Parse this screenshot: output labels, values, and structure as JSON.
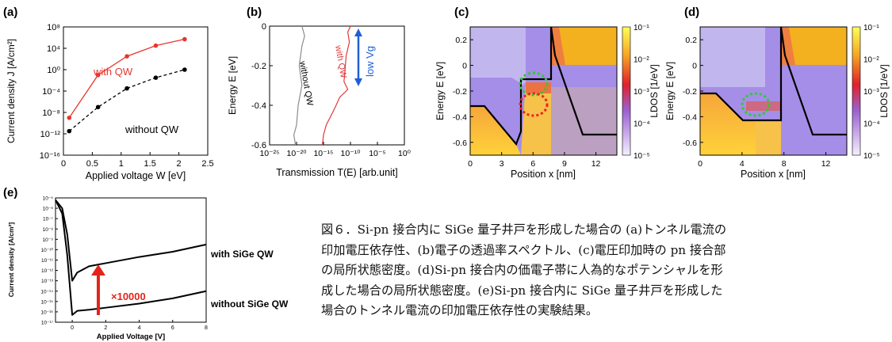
{
  "chart_data": [
    {
      "id": "a",
      "panel_label": "(a)",
      "type": "line",
      "xlabel": "Applied voltage W [eV]",
      "ylabel": "Current density J [A/cm²]",
      "xlim": [
        0,
        2.5
      ],
      "ylim_log10": [
        -16,
        8
      ],
      "x_ticks": [
        "0",
        "0.5",
        "1",
        "1.5",
        "2",
        "2.5"
      ],
      "y_ticks": [
        "10⁻¹⁶",
        "10⁻¹²",
        "10⁻⁸",
        "10⁻⁴",
        "10⁰",
        "10⁴",
        "10⁸"
      ],
      "series": [
        {
          "name": "with QW",
          "color": "#e8352e",
          "x": [
            0.1,
            0.6,
            1.1,
            1.6,
            2.1
          ],
          "log10_y": [
            -9,
            -1,
            2.5,
            4.5,
            5.7
          ]
        },
        {
          "name": "without QW",
          "color": "#000000",
          "x": [
            0.1,
            0.6,
            1.1,
            1.6,
            2.1
          ],
          "log10_y": [
            -11.5,
            -7,
            -3.5,
            -1.5,
            0
          ]
        }
      ]
    },
    {
      "id": "b",
      "panel_label": "(b)",
      "type": "line",
      "xlabel": "Transmission T(E) [arb.unit]",
      "ylabel": "Energy E [eV]",
      "xlim_log10": [
        -25,
        0
      ],
      "ylim": [
        -0.6,
        0
      ],
      "x_ticks": [
        "10⁻²⁵",
        "10⁻²⁰",
        "10⁻¹⁵",
        "10⁻¹⁰",
        "10⁻⁵",
        "10⁰"
      ],
      "y_ticks": [
        "0",
        "-0.2",
        "-0.4",
        "-0.6"
      ],
      "annotation": "low Vg",
      "annotation_color": "#1f5fd6",
      "series": [
        {
          "name": "without QW",
          "color": "#8c8c8c",
          "log10_x": [
            -19,
            -18.5,
            -19,
            -19.5,
            -19,
            -19.7,
            -20,
            -20.5,
            -20.2
          ],
          "y": [
            0,
            -0.05,
            -0.1,
            -0.2,
            -0.3,
            -0.4,
            -0.5,
            -0.55,
            -0.6
          ]
        },
        {
          "name": "with QW",
          "color": "#e03a3a",
          "log10_x": [
            -10,
            -10.5,
            -10.2,
            -10.8,
            -11,
            -11.2,
            -10.5,
            -12,
            -13,
            -14.5,
            -15,
            -15.2
          ],
          "y": [
            0,
            -0.03,
            -0.08,
            -0.15,
            -0.22,
            -0.28,
            -0.32,
            -0.36,
            -0.42,
            -0.5,
            -0.55,
            -0.6
          ]
        }
      ]
    },
    {
      "id": "c",
      "panel_label": "(c)",
      "type": "heatmap",
      "xlabel": "Position x [nm]",
      "ylabel": "Energy E [eV]",
      "xlim": [
        0,
        14
      ],
      "ylim": [
        -0.7,
        0.3
      ],
      "x_ticks": [
        "0",
        "3",
        "6",
        "9",
        "12"
      ],
      "y_ticks": [
        "0.2",
        "0",
        "-0.2",
        "-0.4",
        "-0.6"
      ],
      "colorbar_label": "LDOS [1/eV]",
      "colorbar_ticks": [
        "10⁻¹",
        "10⁻²",
        "10⁻³",
        "10⁻⁴",
        "10⁻⁵"
      ]
    },
    {
      "id": "d",
      "panel_label": "(d)",
      "type": "heatmap",
      "xlabel": "Position x [nm]",
      "ylabel": "Energy E [eV]",
      "xlim": [
        0,
        14
      ],
      "ylim": [
        -0.7,
        0.3
      ],
      "x_ticks": [
        "0",
        "4",
        "8",
        "12"
      ],
      "y_ticks": [
        "0.2",
        "0",
        "-0.2",
        "-0.4",
        "-0.6"
      ],
      "colorbar_label": "LDOS [1/eV]",
      "colorbar_ticks": [
        "10⁻¹",
        "10⁻²",
        "10⁻³",
        "10⁻⁴",
        "10⁻⁵"
      ]
    },
    {
      "id": "e",
      "panel_label": "(e)",
      "type": "line",
      "xlabel": "Applied Voltage [V]",
      "ylabel": "Current density [A/cm²]",
      "xlim": [
        -1,
        8
      ],
      "ylim_log10": [
        -17,
        -5
      ],
      "x_ticks": [
        "0",
        "2",
        "4",
        "6",
        "8"
      ],
      "y_ticks": [
        "10⁻⁵",
        "10⁻⁶",
        "10⁻⁷",
        "10⁻⁸",
        "10⁻⁹",
        "10⁻¹⁰",
        "10⁻¹¹",
        "10⁻¹²",
        "10⁻¹³",
        "10⁻¹⁴",
        "10⁻¹⁵",
        "10⁻¹⁶",
        "10⁻¹⁷"
      ],
      "annotation": "×10000",
      "annotation_color": "#e3241b",
      "series": [
        {
          "name": "with SiGe QW",
          "color": "#000000",
          "x": [
            -1,
            -0.6,
            -0.3,
            0,
            0.3,
            1,
            2,
            4,
            6,
            8
          ],
          "log10_y": [
            -5.2,
            -6,
            -8.5,
            -13,
            -12.2,
            -11.6,
            -11.3,
            -10.7,
            -10.2,
            -9.5
          ]
        },
        {
          "name": "without SiGe QW",
          "color": "#000000",
          "x": [
            -1,
            -0.6,
            -0.3,
            0,
            0.3,
            1,
            2,
            4,
            6,
            8
          ],
          "log10_y": [
            -5.2,
            -6.5,
            -10.5,
            -16.3,
            -15.9,
            -15.8,
            -15.6,
            -15.2,
            -14.7,
            -14
          ]
        }
      ]
    }
  ],
  "caption": [
    "図６．Si-pn 接合内に SiGe 量子井戸を形成した場合の (a)トンネル電流の",
    "印加電圧依存性、(b)電子の透過率スペクトル、(c)電圧印加時の pn 接合部",
    "の局所状態密度。(d)Si-pn 接合内の価電子帯に人為的なポテンシャルを形",
    "成した場合の局所状態密度。(e)Si-pn 接合内に SiGe 量子井戸を形成した",
    "場合のトンネル電流の印加電圧依存性の実験結果。"
  ]
}
